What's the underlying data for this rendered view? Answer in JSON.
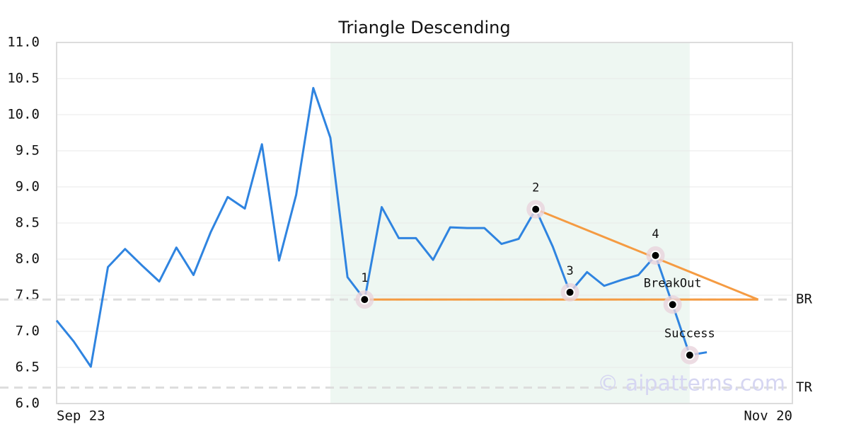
{
  "chart_data": {
    "type": "line",
    "title": "Triangle Descending",
    "categories": [
      "Sep 23",
      null,
      null,
      null,
      null,
      null,
      null,
      null,
      null,
      null,
      null,
      null,
      null,
      null,
      null,
      null,
      null,
      null,
      null,
      null,
      null,
      null,
      null,
      null,
      null,
      null,
      null,
      null,
      null,
      null,
      null,
      null,
      null,
      null,
      null,
      null,
      null,
      null,
      null,
      null,
      null,
      null,
      null,
      "Nov 20"
    ],
    "series": [
      {
        "color": "#2f84e0",
        "values": [
          7.15,
          6.86,
          6.51,
          7.89,
          8.14,
          7.91,
          7.69,
          8.16,
          7.78,
          8.37,
          8.86,
          8.7,
          9.59,
          7.98,
          8.89,
          10.37,
          9.68,
          7.75,
          7.44,
          8.72,
          8.29,
          8.29,
          7.99,
          8.44,
          8.43,
          8.43,
          8.21,
          8.28,
          8.69,
          8.17,
          7.54,
          7.82,
          7.63,
          7.71,
          7.78,
          8.05,
          7.37,
          6.67,
          6.71,
          null,
          null,
          null,
          null,
          null
        ]
      }
    ],
    "ylim": [
      6.0,
      11.0
    ],
    "yticks": [
      {
        "value": 6,
        "label": "6.0"
      },
      6.5,
      {
        "value": 7,
        "label": "7.0"
      },
      7.5,
      {
        "value": 8,
        "label": "8.0"
      },
      8.5,
      {
        "value": 9,
        "label": "9.0"
      },
      9.5,
      {
        "value": 10,
        "label": "10.0"
      },
      10.5,
      {
        "value": 11,
        "label": "11.0"
      }
    ],
    "grid": true,
    "shaded_range": [
      16,
      37
    ],
    "shade_color": "#eef7f2",
    "pattern_color": "#f59b42",
    "pattern_lines": [
      {
        "x": [
          18,
          41
        ],
        "values": [
          7.44,
          7.44
        ]
      },
      {
        "x": [
          28,
          41
        ],
        "values": [
          8.69,
          7.44
        ]
      }
    ],
    "points": [
      {
        "label": "1",
        "x": 18,
        "value": 7.44
      },
      {
        "label": "2",
        "x": 28,
        "value": 8.69
      },
      {
        "label": "3",
        "x": 30,
        "value": 7.54
      },
      {
        "label": "4",
        "x": 35,
        "value": 8.05
      },
      {
        "label": "BreakOut",
        "x": 36,
        "value": 7.37
      },
      {
        "label": "Success",
        "x": 37,
        "value": 6.67
      }
    ],
    "reference_lines": [
      {
        "label": "BR",
        "value": 7.44
      },
      {
        "label": "TR",
        "value": 6.22
      }
    ],
    "watermark": "© aipatterns.com"
  }
}
